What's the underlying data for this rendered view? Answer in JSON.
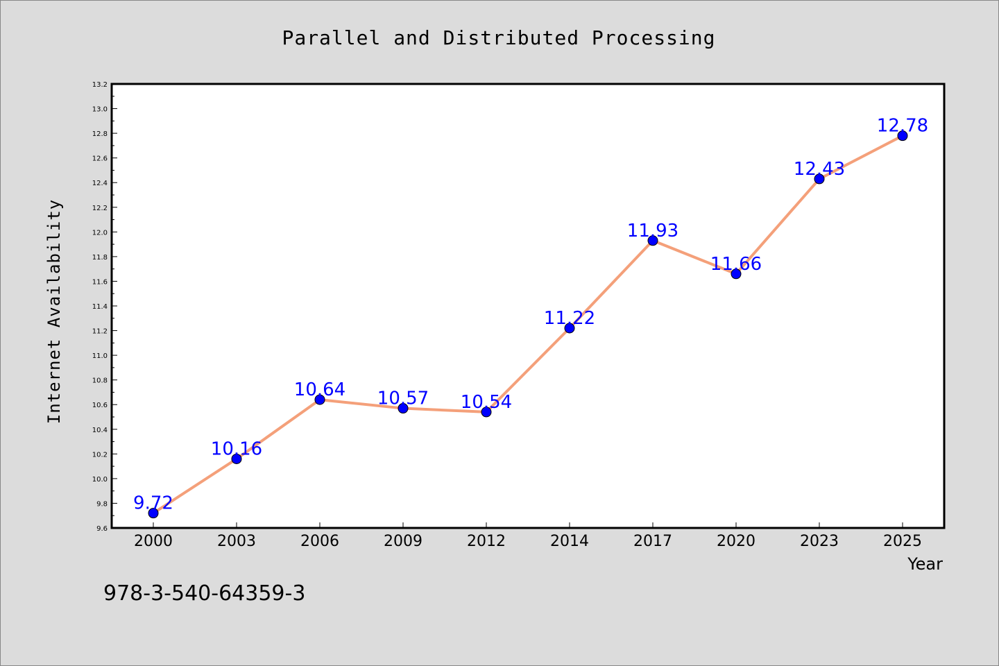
{
  "chart_data": {
    "type": "line",
    "title": "Parallel and Distributed Processing",
    "xlabel": "Year",
    "ylabel": "Internet Availability",
    "categories": [
      "2000",
      "2003",
      "2006",
      "2009",
      "2012",
      "2014",
      "2017",
      "2020",
      "2023",
      "2025"
    ],
    "series": [
      {
        "values": [
          9.72,
          10.16,
          10.64,
          10.57,
          10.54,
          11.22,
          11.93,
          11.66,
          12.43,
          12.78
        ],
        "line_color": "#f4a07a",
        "marker_color": "#0000ff"
      }
    ],
    "data_labels": [
      "9.72",
      "10.16",
      "10.64",
      "10.57",
      "10.54",
      "11.22",
      "11.93",
      "11.66",
      "12.43",
      "12.78"
    ],
    "ylim": [
      9.6,
      13.2
    ],
    "yticks": [
      "9.6",
      "9.8",
      "10.0",
      "10.2",
      "10.4",
      "10.6",
      "10.8",
      "11.0",
      "11.2",
      "11.4",
      "11.6",
      "11.8",
      "12.0",
      "12.2",
      "12.4",
      "12.6",
      "12.8",
      "13.0",
      "13.2"
    ],
    "grid": false,
    "legend": "none",
    "footer_text": "978-3-540-64359-3",
    "background_color": "#dcdcdc",
    "plot_background": "#ffffff",
    "data_label_color": "#0000ff"
  }
}
